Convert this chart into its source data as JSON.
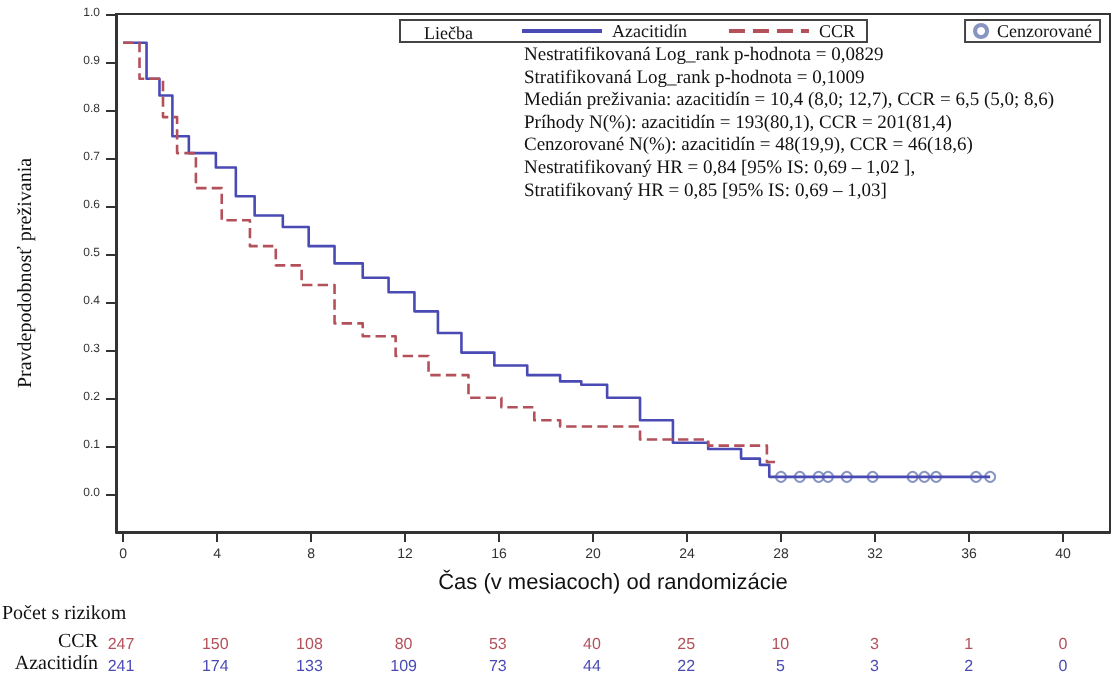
{
  "chart_data": {
    "type": "step",
    "xlabel": "Čas (v mesiacoch) od randomizácie",
    "ylabel": "Pravdepodobnosť preživania",
    "legend_title": "Liečba",
    "legend": "top right",
    "grid": false,
    "xlim": [
      -0.3,
      42
    ],
    "xticks": [
      0,
      4,
      8,
      12,
      16,
      20,
      24,
      28,
      32,
      36,
      40
    ],
    "ylim": [
      -0.08,
      1.0
    ],
    "yticks": [
      {
        "value": 0,
        "label": "0.0"
      },
      0.1,
      0.2,
      0.3,
      0.4,
      0.5,
      0.6,
      0.7,
      0.8,
      0.9,
      {
        "value": 1,
        "label": "1.0"
      }
    ],
    "series": [
      {
        "name": "Azacitidín",
        "color": "#4a4ab4",
        "line_style": "solid",
        "x": [
          0,
          1.0,
          1.55,
          2.1,
          2.8,
          3.95,
          4.8,
          5.6,
          6.8,
          7.9,
          9.0,
          10.2,
          11.3,
          12.4,
          13.4,
          14.4,
          15.8,
          17.2,
          18.6,
          19.5,
          20.6,
          22.0,
          23.4,
          24.9,
          26.3,
          27.1,
          27.5,
          36.9
        ],
        "values": [
          0.94,
          0.865,
          0.83,
          0.745,
          0.71,
          0.68,
          0.62,
          0.58,
          0.556,
          0.516,
          0.48,
          0.45,
          0.42,
          0.38,
          0.335,
          0.294,
          0.267,
          0.247,
          0.234,
          0.227,
          0.2,
          0.153,
          0.106,
          0.093,
          0.073,
          0.06,
          0.035,
          0.035
        ]
      },
      {
        "name": "CCR",
        "color": "#b4505a",
        "line_style": "dashed",
        "x": [
          0,
          0.7,
          1.7,
          2.3,
          3.1,
          4.2,
          5.4,
          6.5,
          7.6,
          9.0,
          10.2,
          11.6,
          13.0,
          14.7,
          16.1,
          17.5,
          18.6,
          22.0,
          24.9,
          27.4,
          27.8
        ],
        "values": [
          0.94,
          0.865,
          0.785,
          0.71,
          0.637,
          0.57,
          0.516,
          0.476,
          0.435,
          0.355,
          0.328,
          0.287,
          0.247,
          0.2,
          0.18,
          0.153,
          0.14,
          0.113,
          0.1,
          0.066,
          0.06
        ]
      },
      {
        "name": "Cenzorované",
        "type": "scatter",
        "marker": "circle",
        "color": "#6a7ab0",
        "x": [
          28,
          28.8,
          29.6,
          30,
          30.8,
          31.9,
          33.6,
          34.1,
          34.6,
          36.3,
          36.9
        ],
        "values": [
          0.035,
          0.035,
          0.035,
          0.035,
          0.035,
          0.035,
          0.035,
          0.035,
          0.035,
          0.035,
          0.035
        ]
      }
    ],
    "annotations": [
      "Nestratifikovaná Log_rank p-hodnota = 0,0829",
      "Stratifikovaná Log_rank p-hodnota = 0,1009",
      "Medián preživania: azacitidín = 10,4 (8,0; 12,7), CCR = 6,5 (5,0; 8,6)",
      "Príhody N(%): azacitidín = 193(80,1), CCR = 201(81,4)",
      "Cenzorované N(%): azacitidín = 48(19,9), CCR = 46(18,6)",
      "Nestratifikovaný HR = 0,84 [95% IS: 0,69 – 1,02 ],",
      "Stratifikovaný HR = 0,85 [95% IS: 0,69 – 1,03]",
      "Počet s rizikom",
      "CCR",
      "247",
      "150",
      "108",
      "80",
      "53",
      "40",
      "25",
      "10",
      "3",
      "1",
      "0",
      "Azacitidín",
      "241",
      "174",
      "133",
      "109",
      "73",
      "44",
      "22",
      "5",
      "3",
      "2",
      "0"
    ]
  }
}
